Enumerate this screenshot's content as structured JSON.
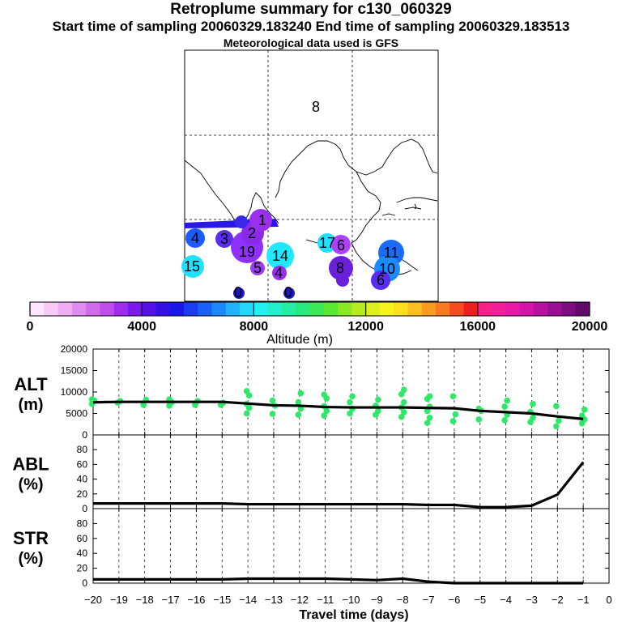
{
  "header": {
    "title": "Retroplume summary for c130_060329",
    "subtitle": "Start time of sampling 20060329.183240     End time of sampling 20060329.183513",
    "meteo": "Meteorological data used is GFS"
  },
  "map": {
    "labels": [
      {
        "text": "8",
        "color": "#000000"
      },
      {
        "text": "4",
        "color": "#1a5cff"
      },
      {
        "text": "3",
        "color": "#5a2cf0"
      },
      {
        "text": "2",
        "color": "#8a2ae8"
      },
      {
        "text": "1",
        "color": "#9b2ff0"
      },
      {
        "text": "15",
        "color": "#22e0ff"
      },
      {
        "text": "19",
        "color": "#9030ff"
      },
      {
        "text": "5",
        "color": "#9b3cf0"
      },
      {
        "text": "14",
        "color": "#20e8ff"
      },
      {
        "text": "4",
        "color": "#9b2ff0"
      },
      {
        "text": "17",
        "color": "#22e0ff"
      },
      {
        "text": "6",
        "color": "#b040ff"
      },
      {
        "text": "11",
        "color": "#1a6cff"
      },
      {
        "text": "8",
        "color": "#6a20d8"
      },
      {
        "text": "10",
        "color": "#1a8cff"
      },
      {
        "text": "6",
        "color": "#5a2cf0"
      },
      {
        "text": "0",
        "color": "#1e18c8"
      },
      {
        "text": "0",
        "color": "#1e18c8"
      }
    ]
  },
  "colorbar": {
    "ticks": [
      "0",
      "4000",
      "8000",
      "12000",
      "16000",
      "20000"
    ],
    "label": "Altitude (m)",
    "colors": [
      "#fde6fd",
      "#f6c9f6",
      "#efadf2",
      "#e08bee",
      "#d06cec",
      "#c04cee",
      "#a02cf2",
      "#7b18ee",
      "#5712ea",
      "#3410e4",
      "#1818e8",
      "#1a3cf4",
      "#1a60fa",
      "#1c88ff",
      "#20b4ff",
      "#22d8ff",
      "#22f0f0",
      "#22f0cc",
      "#22eea4",
      "#28ea7c",
      "#3ae858",
      "#5ce830",
      "#8aea22",
      "#b4ec1e",
      "#dcf020",
      "#f6f21e",
      "#fce01e",
      "#fcc01e",
      "#fc9c1e",
      "#fa781e",
      "#f44c1e",
      "#ee1e1e",
      "#fa1e88",
      "#f41e9c",
      "#ea18a8",
      "#d414a8",
      "#b810a0",
      "#9a0e92",
      "#7c0c80",
      "#62096e"
    ]
  },
  "chart_data": [
    {
      "type": "line",
      "panel": "ALT",
      "ylabel": "ALT (m)",
      "ylim": [
        0,
        20000
      ],
      "yticks": [
        0,
        5000,
        10000,
        15000,
        20000
      ],
      "xlim": [
        -20,
        0
      ],
      "x": [
        -20,
        -19,
        -18,
        -17,
        -16,
        -15,
        -14,
        -13,
        -12,
        -11,
        -10,
        -9,
        -8,
        -7,
        -6,
        -5,
        -4,
        -3,
        -2,
        -1
      ],
      "values": [
        7600,
        7700,
        7700,
        7700,
        7700,
        7700,
        7300,
        6900,
        6800,
        6500,
        6400,
        6400,
        6400,
        6300,
        6200,
        5600,
        5300,
        5000,
        4300,
        3700
      ],
      "scatter_series": [
        {
          "x": -20,
          "y": [
            7200,
            8000,
            8300
          ]
        },
        {
          "x": -19,
          "y": [
            7500,
            7900
          ]
        },
        {
          "x": -18,
          "y": [
            7000,
            8200
          ]
        },
        {
          "x": -17,
          "y": [
            6800,
            7600,
            8300
          ]
        },
        {
          "x": -16,
          "y": [
            7000,
            7900
          ]
        },
        {
          "x": -15,
          "y": [
            7000,
            7500
          ]
        },
        {
          "x": -14,
          "y": [
            5000,
            6300,
            7200,
            9200,
            10200
          ]
        },
        {
          "x": -13,
          "y": [
            4900,
            6800,
            8000
          ]
        },
        {
          "x": -12,
          "y": [
            4700,
            6100,
            7600,
            9700
          ]
        },
        {
          "x": -11,
          "y": [
            4500,
            5600,
            6700,
            8500,
            9400
          ]
        },
        {
          "x": -10,
          "y": [
            5000,
            6100,
            7600,
            9000
          ]
        },
        {
          "x": -9,
          "y": [
            4700,
            5600,
            6800,
            8200
          ]
        },
        {
          "x": -8,
          "y": [
            4200,
            5300,
            6400,
            7600,
            9500,
            10500
          ]
        },
        {
          "x": -7,
          "y": [
            2800,
            4000,
            5600,
            6600,
            8400,
            9000
          ]
        },
        {
          "x": -6,
          "y": [
            3200,
            4800,
            9000
          ]
        },
        {
          "x": -5,
          "y": [
            3600,
            5600,
            6100
          ]
        },
        {
          "x": -4,
          "y": [
            3400,
            4700,
            6600,
            8000
          ]
        },
        {
          "x": -3,
          "y": [
            3000,
            4000,
            5400,
            7200
          ]
        },
        {
          "x": -2,
          "y": [
            2000,
            3300,
            6700
          ]
        },
        {
          "x": -1,
          "y": [
            2700,
            3600,
            4500,
            5900
          ]
        }
      ]
    },
    {
      "type": "line",
      "panel": "ABL",
      "ylabel": "ABL (%)",
      "ylim": [
        0,
        100
      ],
      "yticks": [
        0,
        20,
        40,
        60,
        80
      ],
      "xlim": [
        -20,
        0
      ],
      "x": [
        -20,
        -19,
        -18,
        -17,
        -16,
        -15,
        -14,
        -13,
        -12,
        -11,
        -10,
        -9,
        -8,
        -7,
        -6,
        -5,
        -4,
        -3,
        -2,
        -1
      ],
      "values": [
        7,
        7,
        7,
        7,
        7,
        7,
        6,
        6,
        6,
        6,
        6,
        6,
        6,
        5,
        5,
        2,
        2,
        4,
        19,
        63
      ]
    },
    {
      "type": "line",
      "panel": "STR",
      "ylabel": "STR (%)",
      "ylim": [
        0,
        100
      ],
      "yticks": [
        0,
        20,
        40,
        60,
        80
      ],
      "xlim": [
        -20,
        0
      ],
      "x": [
        -20,
        -19,
        -18,
        -17,
        -16,
        -15,
        -14,
        -13,
        -12,
        -11,
        -10,
        -9,
        -8,
        -7,
        -6,
        -5,
        -4,
        -3,
        -2,
        -1
      ],
      "values": [
        5,
        5,
        5,
        5,
        5,
        5,
        6,
        6,
        6,
        6,
        5,
        4,
        6,
        2,
        0,
        0,
        0,
        0,
        0,
        0
      ]
    }
  ],
  "xaxis": {
    "title": "Travel time (days)",
    "ticks": [
      "−20",
      "−19",
      "−18",
      "−17",
      "−16",
      "−15",
      "−14",
      "−13",
      "−12",
      "−11",
      "−10",
      "−9",
      "−8",
      "−7",
      "−6",
      "−5",
      "−4",
      "−3",
      "−2",
      "−1",
      "0"
    ]
  },
  "panel_labels": {
    "alt": [
      "ALT",
      "(m)"
    ],
    "abl": [
      "ABL",
      "(%)"
    ],
    "str": [
      "STR",
      "(%)"
    ]
  }
}
